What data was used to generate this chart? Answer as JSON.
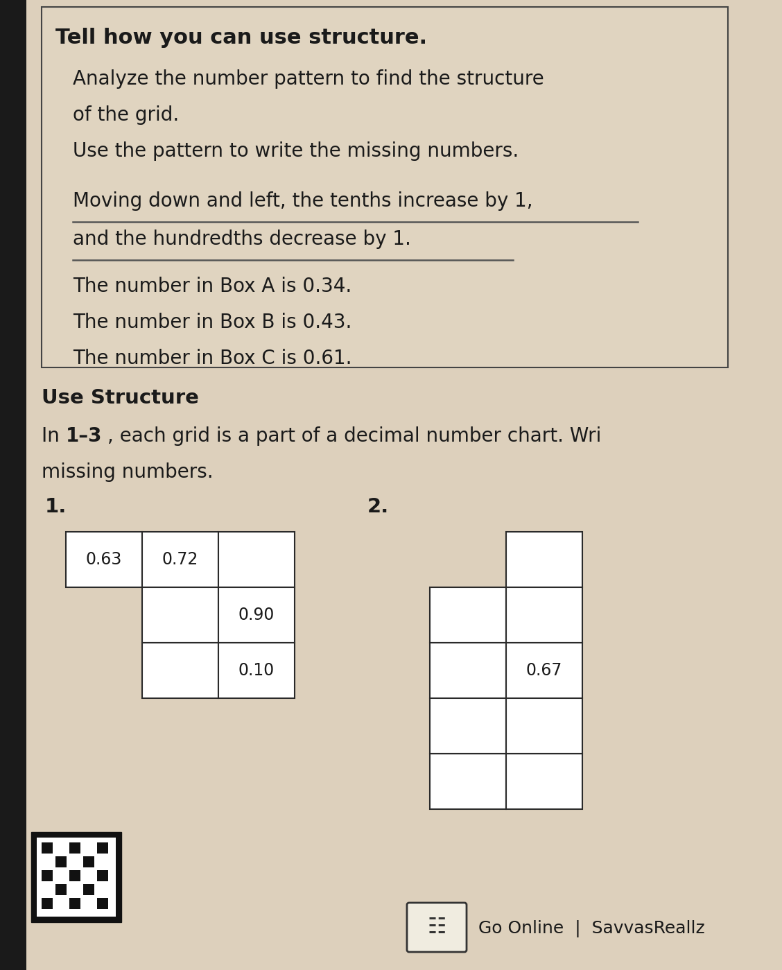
{
  "bg_color": "#c8b89a",
  "page_bg": "#e8ddd0",
  "content_bg": "#e8ddd0",
  "title_text": "Tell how you can use structure.",
  "para1_lines": [
    "Analyze the number pattern to find the structure",
    "of the grid.",
    "Use the pattern to write the missing numbers."
  ],
  "para2_line1": "Moving down and left, the tenths increase by 1,",
  "para2_line2": "and the hundredths decrease by 1.",
  "para3_lines": [
    "The number in Box A is 0.34.",
    "The number in Box B is 0.43.",
    "The number in Box C is 0.61."
  ],
  "section_bold": "Use Structure",
  "section_line1_prefix": "In ",
  "section_line1_bold": "1–3",
  "section_line1_suffix": ", each grid is a part of a decimal number chart. Wri",
  "section_line2": "missing numbers.",
  "problem1_label": "1.",
  "problem2_label": "2.",
  "grid1_top_row": [
    "0.63",
    "0.72",
    ""
  ],
  "grid1_col2_rows": [
    "0.90",
    "0.10"
  ],
  "grid1_col1_extra": [
    "",
    ""
  ],
  "grid2_top_cell": "",
  "grid2_rows_col0": [
    "",
    "",
    "",
    ""
  ],
  "grid2_rows_col1": [
    "",
    "0.67",
    "",
    ""
  ],
  "footer_text": "Go Online  |  SavvasReallz",
  "text_color": "#1a1a1a",
  "grid_line_color": "#2a2a2a",
  "box_edge_color": "#444444",
  "left_strip_color": "#1a1a1a"
}
